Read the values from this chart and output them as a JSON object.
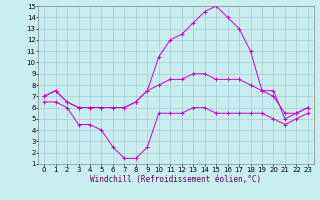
{
  "xlabel": "Windchill (Refroidissement éolien,°C)",
  "xlim": [
    -0.5,
    23.5
  ],
  "ylim": [
    1,
    15
  ],
  "xticks": [
    0,
    1,
    2,
    3,
    4,
    5,
    6,
    7,
    8,
    9,
    10,
    11,
    12,
    13,
    14,
    15,
    16,
    17,
    18,
    19,
    20,
    21,
    22,
    23
  ],
  "yticks": [
    1,
    2,
    3,
    4,
    5,
    6,
    7,
    8,
    9,
    10,
    11,
    12,
    13,
    14,
    15
  ],
  "background_color": "#c8eef0",
  "grid_color": "#a8ccd8",
  "line_color": "#cc00cc",
  "series": [
    {
      "x": [
        0,
        1,
        2,
        3,
        4,
        5,
        6,
        7,
        8,
        9,
        10,
        11,
        12,
        13,
        14,
        15,
        16,
        17,
        18,
        19,
        20,
        21,
        22,
        23
      ],
      "y": [
        7.0,
        7.5,
        6.5,
        6.0,
        6.0,
        6.0,
        6.0,
        6.0,
        6.5,
        7.5,
        10.5,
        12.0,
        12.5,
        13.5,
        14.5,
        15.0,
        14.0,
        13.0,
        11.0,
        7.5,
        7.5,
        5.0,
        5.5,
        6.0
      ]
    },
    {
      "x": [
        0,
        1,
        2,
        3,
        4,
        5,
        6,
        7,
        8,
        9,
        10,
        11,
        12,
        13,
        14,
        15,
        16,
        17,
        18,
        19,
        20,
        21,
        22,
        23
      ],
      "y": [
        7.0,
        7.5,
        6.5,
        6.0,
        6.0,
        6.0,
        6.0,
        6.0,
        6.5,
        7.5,
        8.0,
        8.5,
        8.5,
        9.0,
        9.0,
        8.5,
        8.5,
        8.5,
        8.0,
        7.5,
        7.0,
        5.5,
        5.5,
        6.0
      ]
    },
    {
      "x": [
        0,
        1,
        2,
        3,
        4,
        5,
        6,
        7,
        8,
        9,
        10,
        11,
        12,
        13,
        14,
        15,
        16,
        17,
        18,
        19,
        20,
        21,
        22,
        23
      ],
      "y": [
        6.5,
        6.5,
        6.0,
        4.5,
        4.5,
        4.0,
        2.5,
        1.5,
        1.5,
        2.5,
        5.5,
        5.5,
        5.5,
        6.0,
        6.0,
        5.5,
        5.5,
        5.5,
        5.5,
        5.5,
        5.0,
        4.5,
        5.0,
        5.5
      ]
    }
  ],
  "font_size": 5.5,
  "tick_font_size": 5,
  "marker": "+"
}
